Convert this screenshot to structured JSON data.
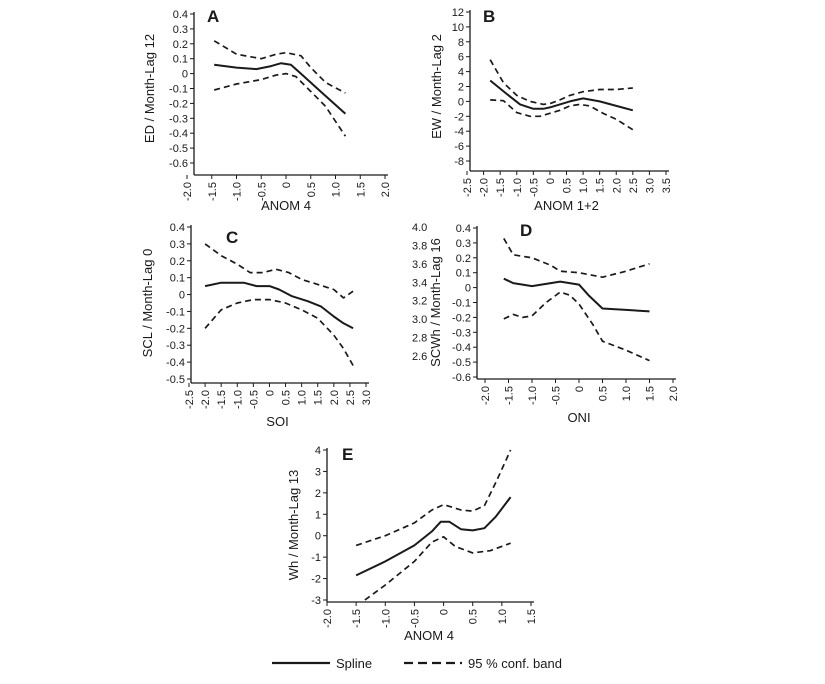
{
  "legend": {
    "spline_label": "Spline",
    "band_label": "95 % conf. band"
  },
  "chart_data": [
    {
      "type": "line",
      "panel": "A",
      "xlabel": "ANOM 4",
      "ylabel": "ED / Month-Lag 12",
      "xlim": [
        -2.0,
        2.0
      ],
      "ylim": [
        -0.6,
        0.4
      ],
      "xticks": [
        "-2.0",
        "-1.5",
        "-1.0",
        "-0.5",
        "0",
        "0.5",
        "1.0",
        "1.5",
        "2.0"
      ],
      "yticks": [
        "0.4",
        "0.3",
        "0.2",
        "0.1",
        "0",
        "-0.1",
        "-0.2",
        "-0.3",
        "-0.4",
        "-0.5",
        "-0.6"
      ],
      "series": [
        {
          "style": "solid",
          "x": [
            -1.45,
            -1.0,
            -0.6,
            -0.3,
            -0.1,
            0.1,
            0.3,
            0.7,
            1.2
          ],
          "y": [
            0.06,
            0.04,
            0.03,
            0.05,
            0.07,
            0.06,
            0.0,
            -0.12,
            -0.27
          ]
        },
        {
          "style": "dashed",
          "x": [
            -1.45,
            -1.0,
            -0.5,
            -0.2,
            0.0,
            0.3,
            0.5,
            0.8,
            1.2
          ],
          "y": [
            0.22,
            0.13,
            0.1,
            0.13,
            0.14,
            0.12,
            0.04,
            -0.06,
            -0.13
          ]
        },
        {
          "style": "dashed",
          "x": [
            -1.45,
            -1.0,
            -0.5,
            -0.2,
            0.0,
            0.2,
            0.5,
            0.8,
            1.2
          ],
          "y": [
            -0.11,
            -0.07,
            -0.04,
            -0.01,
            0.0,
            -0.02,
            -0.12,
            -0.22,
            -0.42
          ]
        }
      ]
    },
    {
      "type": "line",
      "panel": "B",
      "xlabel": "ANOM 1+2",
      "ylabel": "EW / Month-Lag 2",
      "xlim": [
        -2.5,
        3.5
      ],
      "ylim": [
        -8,
        12
      ],
      "xticks": [
        "-2.5",
        "-2.0",
        "-1.5",
        "-1.0",
        "-0.5",
        "0",
        "0.5",
        "1.0",
        "1.5",
        "2.0",
        "2.5",
        "3.0",
        "3.5"
      ],
      "yticks": [
        "12",
        "10",
        "8",
        "6",
        "4",
        "2",
        "0",
        "-2",
        "-4",
        "-6",
        "-8"
      ],
      "series": [
        {
          "style": "solid",
          "x": [
            -1.8,
            -1.3,
            -0.9,
            -0.5,
            -0.2,
            0.0,
            0.3,
            0.6,
            1.0,
            1.5,
            2.0,
            2.5
          ],
          "y": [
            2.8,
            1.0,
            -0.4,
            -1.0,
            -1.0,
            -0.8,
            -0.4,
            0.0,
            0.4,
            0.0,
            -0.6,
            -1.2
          ]
        },
        {
          "style": "dashed",
          "x": [
            -1.8,
            -1.4,
            -1.0,
            -0.6,
            -0.2,
            0.0,
            0.3,
            0.6,
            1.0,
            1.5,
            2.0,
            2.5
          ],
          "y": [
            5.6,
            2.5,
            0.8,
            0.0,
            -0.4,
            -0.3,
            0.2,
            0.8,
            1.3,
            1.6,
            1.6,
            1.8
          ]
        },
        {
          "style": "dashed",
          "x": [
            -1.8,
            -1.4,
            -1.0,
            -0.6,
            -0.3,
            0.0,
            0.3,
            0.6,
            0.9,
            1.2,
            1.6,
            2.0,
            2.5
          ],
          "y": [
            0.2,
            0.1,
            -1.5,
            -2.0,
            -2.0,
            -1.6,
            -1.2,
            -0.6,
            -0.4,
            -0.6,
            -1.6,
            -2.4,
            -3.8
          ]
        }
      ]
    },
    {
      "type": "line",
      "panel": "C",
      "xlabel": "SOI",
      "ylabel": "SCL / Month-Lag 0",
      "xlim": [
        -2.5,
        3.0
      ],
      "ylim": [
        -0.5,
        0.4
      ],
      "right_axis_ticks": [
        "4.0",
        "3.8",
        "3.6",
        "3.4",
        "3.2",
        "3.0",
        "2.8",
        "2.6"
      ],
      "xticks": [
        "-2.5",
        "-2.0",
        "-1.5",
        "-1.0",
        "-0.5",
        "0",
        "0.5",
        "1.0",
        "1.5",
        "2.0",
        "2.5",
        "3.0"
      ],
      "yticks": [
        "0.4",
        "0.3",
        "0.2",
        "0.1",
        "0",
        "-0.1",
        "-0.2",
        "-0.3",
        "-0.4",
        "-0.5"
      ],
      "series": [
        {
          "style": "solid",
          "x": [
            -2.0,
            -1.5,
            -0.8,
            -0.4,
            0.0,
            0.3,
            0.7,
            1.2,
            1.6,
            2.0,
            2.3,
            2.6
          ],
          "y": [
            0.05,
            0.07,
            0.07,
            0.05,
            0.05,
            0.03,
            -0.01,
            -0.04,
            -0.07,
            -0.13,
            -0.17,
            -0.2
          ]
        },
        {
          "style": "dashed",
          "x": [
            -2.0,
            -1.5,
            -1.0,
            -0.6,
            -0.2,
            0.2,
            0.6,
            1.0,
            1.5,
            2.0,
            2.3,
            2.6
          ],
          "y": [
            0.3,
            0.23,
            0.18,
            0.13,
            0.13,
            0.15,
            0.13,
            0.09,
            0.06,
            0.03,
            -0.02,
            0.02
          ]
        },
        {
          "style": "dashed",
          "x": [
            -2.0,
            -1.5,
            -1.0,
            -0.5,
            0.0,
            0.5,
            1.0,
            1.5,
            2.0,
            2.3,
            2.6
          ],
          "y": [
            -0.2,
            -0.09,
            -0.05,
            -0.03,
            -0.03,
            -0.05,
            -0.09,
            -0.14,
            -0.24,
            -0.32,
            -0.42
          ]
        }
      ]
    },
    {
      "type": "line",
      "panel": "D",
      "xlabel": "ONI",
      "ylabel": "SCWh / Month-Lag 16",
      "xlim": [
        -2.0,
        2.0
      ],
      "ylim": [
        -0.6,
        0.4
      ],
      "xticks": [
        "-2.0",
        "-1.5",
        "-1.0",
        "-0.5",
        "0",
        "0.5",
        "1.0",
        "1.5",
        "2.0"
      ],
      "yticks": [
        "0.4",
        "0.3",
        "0.2",
        "0.1",
        "0",
        "-0.1",
        "-0.2",
        "-0.3",
        "-0.4",
        "-0.5",
        "-0.6"
      ],
      "series": [
        {
          "style": "solid",
          "x": [
            -1.6,
            -1.4,
            -1.0,
            -0.6,
            -0.4,
            0.0,
            0.2,
            0.5,
            1.0,
            1.5
          ],
          "y": [
            0.06,
            0.03,
            0.01,
            0.03,
            0.04,
            0.02,
            -0.05,
            -0.14,
            -0.15,
            -0.16
          ]
        },
        {
          "style": "dashed",
          "x": [
            -1.6,
            -1.4,
            -1.2,
            -1.0,
            -0.6,
            -0.4,
            0.0,
            0.5,
            1.0,
            1.5
          ],
          "y": [
            0.33,
            0.22,
            0.21,
            0.2,
            0.15,
            0.11,
            0.1,
            0.07,
            0.11,
            0.16
          ]
        },
        {
          "style": "dashed",
          "x": [
            -1.6,
            -1.4,
            -1.2,
            -1.0,
            -0.7,
            -0.4,
            -0.2,
            0.0,
            0.3,
            0.5,
            1.0,
            1.5
          ],
          "y": [
            -0.21,
            -0.18,
            -0.2,
            -0.19,
            -0.1,
            -0.03,
            -0.05,
            -0.11,
            -0.25,
            -0.36,
            -0.42,
            -0.49
          ]
        }
      ]
    },
    {
      "type": "line",
      "panel": "E",
      "xlabel": "ANOM 4",
      "ylabel": "Wh / Month-Lag 13",
      "xlim": [
        -2.0,
        1.5
      ],
      "ylim": [
        -3,
        4
      ],
      "xticks": [
        "-2.0",
        "-1.5",
        "-1.0",
        "-0.5",
        "0",
        "0.5",
        "1.0",
        "1.5"
      ],
      "yticks": [
        "4",
        "3",
        "2",
        "1",
        "0",
        "-1",
        "-2",
        "-3"
      ],
      "series": [
        {
          "style": "solid",
          "x": [
            -1.5,
            -1.0,
            -0.5,
            -0.2,
            -0.05,
            0.1,
            0.3,
            0.5,
            0.7,
            0.9,
            1.15
          ],
          "y": [
            -1.85,
            -1.2,
            -0.45,
            0.2,
            0.65,
            0.65,
            0.3,
            0.25,
            0.35,
            0.9,
            1.8
          ]
        },
        {
          "style": "dashed",
          "x": [
            -1.5,
            -1.0,
            -0.5,
            -0.2,
            0.0,
            0.3,
            0.5,
            0.7,
            0.9,
            1.15
          ],
          "y": [
            -0.45,
            0.0,
            0.6,
            1.2,
            1.45,
            1.2,
            1.15,
            1.4,
            2.5,
            4.0
          ]
        },
        {
          "style": "dashed",
          "x": [
            -1.35,
            -1.0,
            -0.5,
            -0.2,
            0.0,
            0.2,
            0.5,
            0.8,
            1.15
          ],
          "y": [
            -3.0,
            -2.3,
            -1.2,
            -0.3,
            -0.05,
            -0.5,
            -0.8,
            -0.7,
            -0.35
          ]
        }
      ]
    }
  ]
}
